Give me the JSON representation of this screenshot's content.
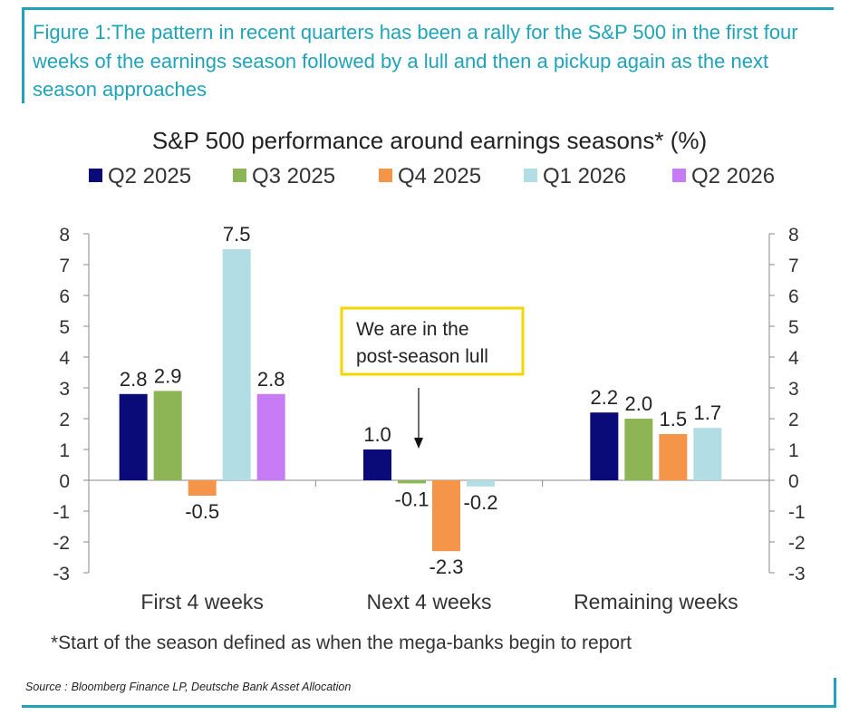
{
  "figure_title": "Figure 1:The pattern in recent quarters has been a rally for the S&P 500 in the first four weeks of the earnings season followed by a lull and then a pickup again as the next season approaches",
  "footnote": "*Start of the season defined as when the mega-banks begin to report",
  "source": {
    "label": "Source :",
    "text": "Bloomberg Finance LP, Deutsche Bank Asset Allocation"
  },
  "annotation": {
    "lines": [
      "We are in the",
      "post-season lull"
    ],
    "border_color": "#f2d600"
  },
  "colors": {
    "frame": "#1fa3b8",
    "axis": "#888888",
    "text": "#222222"
  },
  "chart_data": {
    "type": "bar",
    "title": "S&P 500 performance around earnings seasons* (%)",
    "xlabel": "",
    "ylabel": "",
    "ylim": [
      -3,
      8
    ],
    "yticks": [
      "-3",
      "-2",
      "-1",
      "0",
      "1",
      "2",
      "3",
      "4",
      "5",
      "6",
      "7",
      "8"
    ],
    "grid": false,
    "legend_position": "top",
    "categories": [
      "First 4 weeks",
      "Next 4 weeks",
      "Remaining weeks"
    ],
    "series": [
      {
        "name": "Q2 2025",
        "color": "#0a0a78",
        "values": [
          2.8,
          1.0,
          2.2
        ],
        "labels": [
          "2.8",
          "1.0",
          "2.2"
        ]
      },
      {
        "name": "Q3 2025",
        "color": "#8db556",
        "values": [
          2.9,
          -0.1,
          2.0
        ],
        "labels": [
          "2.9",
          "-0.1",
          "2.0"
        ]
      },
      {
        "name": "Q4 2025",
        "color": "#f5954a",
        "values": [
          -0.5,
          -2.3,
          1.5
        ],
        "labels": [
          "-0.5",
          "-2.3",
          "1.5"
        ]
      },
      {
        "name": "Q1 2026",
        "color": "#b3dde5",
        "values": [
          7.5,
          -0.2,
          1.7
        ],
        "labels": [
          "7.5",
          "-0.2",
          "1.7"
        ]
      },
      {
        "name": "Q2 2026",
        "color": "#c77cf5",
        "values": [
          2.8,
          null,
          null
        ],
        "labels": [
          "2.8",
          "",
          ""
        ]
      }
    ]
  }
}
